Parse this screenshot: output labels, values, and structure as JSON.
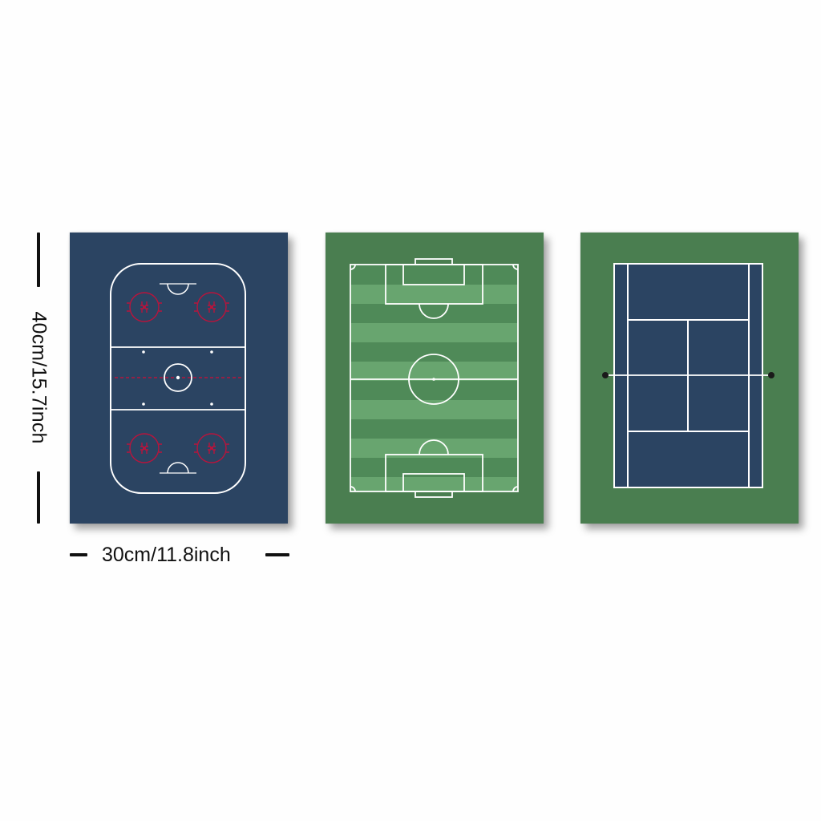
{
  "dimensions": {
    "height_label": "40cm/15.7inch",
    "width_label": "30cm/11.8inch"
  },
  "panels": [
    {
      "name": "hockey-rink",
      "background": "#2b4462",
      "line_color": "#ffffff",
      "accent_color": "#b8143c"
    },
    {
      "name": "soccer-pitch",
      "background": "#4a7e50",
      "stripe_light": "#68a56f",
      "stripe_dark": "#4f8a58",
      "line_color": "#ffffff"
    },
    {
      "name": "tennis-court",
      "background": "#4a7e50",
      "court_color": "#2b4462",
      "line_color": "#ffffff",
      "net_post_color": "#1a1a1a"
    }
  ]
}
